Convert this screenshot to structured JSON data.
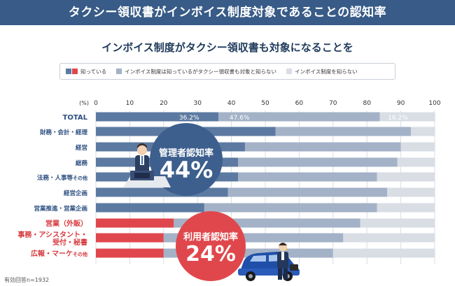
{
  "header": {
    "title": "タクシー領収書がインボイス制度対象であることの認知率"
  },
  "subtitle": "インボイス制度がタクシー領収書も対象になることを",
  "legend": [
    {
      "label": "知っている",
      "color_mgr": "#5c7aa1",
      "color_usr": "#e0474c"
    },
    {
      "label": "インボイス制度は知っているがタクシー領収書も対象と知らない",
      "color": "#a3b2c7"
    },
    {
      "label": "インボイス制度を知らない",
      "color": "#d9dee5"
    }
  ],
  "chart_data": {
    "type": "bar",
    "orientation": "horizontal",
    "stacked": true,
    "x_unit_label": "(%)",
    "xlim": [
      0,
      100
    ],
    "xticks": [
      0,
      10,
      20,
      30,
      40,
      50,
      60,
      70,
      80,
      90,
      100
    ],
    "grid": true,
    "categories": [
      {
        "name": "TOTAL",
        "suffix": "",
        "group": "total"
      },
      {
        "name": "財務・会計・経理",
        "suffix": "",
        "group": "manager"
      },
      {
        "name": "経営",
        "suffix": "",
        "group": "manager"
      },
      {
        "name": "総務",
        "suffix": "",
        "group": "manager"
      },
      {
        "name": "法務・人事等",
        "suffix": "その他",
        "group": "manager"
      },
      {
        "name": "経営企画",
        "suffix": "",
        "group": "manager"
      },
      {
        "name": "営業推進・営業企画",
        "suffix": "",
        "group": "manager"
      },
      {
        "name": "営業（外販）",
        "suffix": "",
        "group": "user"
      },
      {
        "name": "事務・アシスタント・受付・秘書",
        "suffix": "",
        "group": "user"
      },
      {
        "name": "広報・マーケ",
        "suffix": "その他",
        "group": "user"
      }
    ],
    "series": [
      {
        "name": "知っている",
        "values": [
          36.2,
          53,
          44,
          42,
          42,
          39,
          32,
          23,
          20,
          20
        ]
      },
      {
        "name": "インボイス制度は知っているがタクシー領収書も対象と知らない",
        "values": [
          47.6,
          40,
          46,
          47,
          41,
          47,
          51,
          55,
          53,
          50
        ]
      },
      {
        "name": "インボイス制度を知らない",
        "values": [
          16.2,
          7,
          10,
          11,
          17,
          14,
          17,
          22,
          27,
          30
        ]
      }
    ],
    "data_labels": {
      "row": 0,
      "texts": [
        "36.2%",
        "47.6%",
        "16.2%"
      ]
    }
  },
  "callouts": {
    "manager": {
      "label": "管理者認知率",
      "value": "44%",
      "color": "#3d5f8d"
    },
    "user": {
      "label": "利用者認知率",
      "value": "24%",
      "color": "#e0474c"
    }
  },
  "colors": {
    "banner": "#385b87",
    "manager_text": "#2d5080",
    "user_text": "#d8393e",
    "total_text": "#2d5080"
  },
  "footnote": "有効回答n=1932"
}
